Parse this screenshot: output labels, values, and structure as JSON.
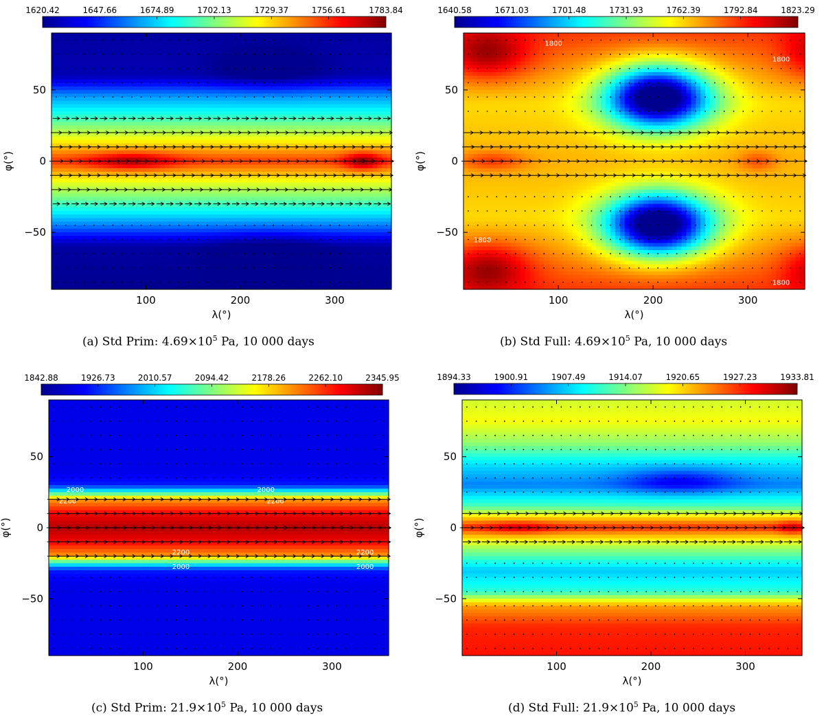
{
  "figure": {
    "colors": [
      "#00008f",
      "#0000ff",
      "#0080ff",
      "#00ffff",
      "#80ff80",
      "#ffff00",
      "#ff8000",
      "#ff0000",
      "#800000"
    ],
    "vector_color": "#000000",
    "contour_color": "#ffffff"
  },
  "chart_data": [
    {
      "type": "heatmap",
      "title": "Std Prim: 4.69×10^5 Pa, 10 000 days",
      "caption_prefix": "(a)  Std Prim:  4.69×10",
      "caption_exp": "5",
      "caption_suffix": " Pa, 10 000 days",
      "xlabel": "λ(°)",
      "ylabel": "φ(°)",
      "xlim": [
        0,
        360
      ],
      "ylim": [
        -90,
        90
      ],
      "xticks": [
        100,
        200,
        300
      ],
      "yticks": [
        -50,
        0,
        50
      ],
      "ytick_labels": [
        "−50",
        "0",
        "50"
      ],
      "colorbar_ticks": [
        "1620.42",
        "1647.66",
        "1674.89",
        "1702.13",
        "1729.37",
        "1756.61",
        "1783.84"
      ],
      "field": {
        "base": [
          [
            -90,
            0.0
          ],
          [
            -60,
            0.02
          ],
          [
            -45,
            0.25
          ],
          [
            -35,
            0.38
          ],
          [
            -25,
            0.5
          ],
          [
            -15,
            0.6
          ],
          [
            0,
            0.82
          ],
          [
            15,
            0.62
          ],
          [
            25,
            0.5
          ],
          [
            35,
            0.38
          ],
          [
            45,
            0.28
          ],
          [
            60,
            0.04
          ],
          [
            90,
            0.02
          ]
        ],
        "blobs": [
          {
            "lon": 85,
            "lat": 0,
            "sx": 45,
            "sy": 6,
            "amp": 0.15
          },
          {
            "lon": 330,
            "lat": 0,
            "sx": 20,
            "sy": 6,
            "amp": 0.18
          },
          {
            "lon": 230,
            "lat": 65,
            "sx": 55,
            "sy": 14,
            "amp": -0.08
          },
          {
            "lon": 230,
            "lat": -65,
            "sx": 55,
            "sy": 14,
            "amp": -0.08
          }
        ]
      },
      "jets": [
        {
          "lat": 20,
          "speed": 0.7
        },
        {
          "lat": 10,
          "speed": 0.85
        },
        {
          "lat": 0,
          "speed": 1.0
        },
        {
          "lat": -10,
          "speed": 0.85
        },
        {
          "lat": -20,
          "speed": 0.6
        },
        {
          "lat": 30,
          "speed": 0.3
        },
        {
          "lat": -30,
          "speed": 0.3
        }
      ],
      "contour_labels": []
    },
    {
      "type": "heatmap",
      "title": "Std Full: 4.69×10^5 Pa, 10 000 days",
      "caption_prefix": "(b)  Std Full:  4.69×10",
      "caption_exp": "5",
      "caption_suffix": " Pa, 10 000 days",
      "xlabel": "λ(°)",
      "ylabel": "φ(°)",
      "xlim": [
        0,
        360
      ],
      "ylim": [
        -90,
        90
      ],
      "xticks": [
        100,
        200,
        300
      ],
      "yticks": [
        -50,
        0,
        50
      ],
      "ytick_labels": [
        "−50",
        "0",
        "50"
      ],
      "colorbar_ticks": [
        "1640.58",
        "1671.03",
        "1701.48",
        "1731.93",
        "1762.39",
        "1792.84",
        "1823.29"
      ],
      "field": {
        "base": [
          [
            -90,
            0.82
          ],
          [
            -60,
            0.72
          ],
          [
            -40,
            0.66
          ],
          [
            0,
            0.7
          ],
          [
            40,
            0.66
          ],
          [
            60,
            0.72
          ],
          [
            90,
            0.82
          ]
        ],
        "blobs": [
          {
            "lon": 205,
            "lat": 45,
            "sx": 55,
            "sy": 22,
            "amp": -0.78
          },
          {
            "lon": 205,
            "lat": -45,
            "sx": 55,
            "sy": 22,
            "amp": -0.78
          },
          {
            "lon": 25,
            "lat": 75,
            "sx": 45,
            "sy": 18,
            "amp": 0.2
          },
          {
            "lon": 25,
            "lat": -75,
            "sx": 45,
            "sy": 18,
            "amp": 0.2
          },
          {
            "lon": 370,
            "lat": 75,
            "sx": 35,
            "sy": 18,
            "amp": 0.15
          },
          {
            "lon": 370,
            "lat": -75,
            "sx": 35,
            "sy": 18,
            "amp": 0.15
          },
          {
            "lon": 30,
            "lat": 0,
            "sx": 35,
            "sy": 7,
            "amp": 0.12
          },
          {
            "lon": 310,
            "lat": 0,
            "sx": 20,
            "sy": 7,
            "amp": 0.1
          }
        ]
      },
      "jets": [
        {
          "lat": 20,
          "speed": 0.6
        },
        {
          "lat": 10,
          "speed": 0.8
        },
        {
          "lat": 0,
          "speed": 1.0
        },
        {
          "lat": -10,
          "speed": 0.75
        }
      ],
      "contour_labels": [
        {
          "text": "1800",
          "lon": 95,
          "lat": 83
        },
        {
          "text": "1800",
          "lon": 335,
          "lat": 72
        },
        {
          "text": "1800",
          "lon": 20,
          "lat": -55
        },
        {
          "text": "1800",
          "lon": 335,
          "lat": -85
        }
      ]
    },
    {
      "type": "heatmap",
      "title": "Std Prim: 21.9×10^5 Pa, 10 000 days",
      "caption_prefix": "(c)  Std Prim:  21.9×10",
      "caption_exp": "5",
      "caption_suffix": " Pa, 10 000 days",
      "xlabel": "λ(°)",
      "ylabel": "φ(°)",
      "xlim": [
        0,
        360
      ],
      "ylim": [
        -90,
        90
      ],
      "xticks": [
        100,
        200,
        300
      ],
      "yticks": [
        -50,
        0,
        50
      ],
      "ytick_labels": [
        "−50",
        "0",
        "50"
      ],
      "colorbar_ticks": [
        "1842.88",
        "1926.73",
        "2010.57",
        "2094.42",
        "2178.26",
        "2262.10",
        "2345.95"
      ],
      "field": {
        "base": [
          [
            -90,
            0.1
          ],
          [
            -40,
            0.1
          ],
          [
            -30,
            0.15
          ],
          [
            -25,
            0.4
          ],
          [
            -20,
            0.72
          ],
          [
            -10,
            0.88
          ],
          [
            0,
            0.95
          ],
          [
            10,
            0.88
          ],
          [
            20,
            0.72
          ],
          [
            25,
            0.4
          ],
          [
            30,
            0.15
          ],
          [
            40,
            0.1
          ],
          [
            90,
            0.1
          ]
        ],
        "blobs": []
      },
      "jets": [
        {
          "lat": 20,
          "speed": 0.85
        },
        {
          "lat": 10,
          "speed": 0.9
        },
        {
          "lat": 0,
          "speed": 1.0
        },
        {
          "lat": -10,
          "speed": 0.9
        },
        {
          "lat": -20,
          "speed": 0.85
        }
      ],
      "contour_labels": [
        {
          "text": "2000",
          "lon": 28,
          "lat": 27
        },
        {
          "text": "2000",
          "lon": 230,
          "lat": 27
        },
        {
          "text": "2200",
          "lon": 20,
          "lat": 19
        },
        {
          "text": "2200",
          "lon": 240,
          "lat": 19
        },
        {
          "text": "2200",
          "lon": 140,
          "lat": -17
        },
        {
          "text": "2200",
          "lon": 335,
          "lat": -17
        },
        {
          "text": "2000",
          "lon": 140,
          "lat": -27
        },
        {
          "text": "2000",
          "lon": 335,
          "lat": -27
        }
      ]
    },
    {
      "type": "heatmap",
      "title": "Std Full: 21.9×10^5 Pa, 10 000 days",
      "caption_prefix": "(d)  Std Full:  21.9×10",
      "caption_exp": "5",
      "caption_suffix": " Pa, 10 000 days",
      "xlabel": "λ(°)",
      "ylabel": "φ(°)",
      "xlim": [
        0,
        360
      ],
      "ylim": [
        -90,
        90
      ],
      "xticks": [
        100,
        200,
        300
      ],
      "yticks": [
        -50,
        0,
        50
      ],
      "ytick_labels": [
        "−50",
        "0",
        "50"
      ],
      "colorbar_ticks": [
        "1894.33",
        "1900.91",
        "1907.49",
        "1914.07",
        "1920.65",
        "1927.23",
        "1933.81"
      ],
      "field": {
        "base": [
          [
            -90,
            0.86
          ],
          [
            -70,
            0.84
          ],
          [
            -55,
            0.72
          ],
          [
            -45,
            0.42
          ],
          [
            -30,
            0.32
          ],
          [
            -15,
            0.52
          ],
          [
            -5,
            0.7
          ],
          [
            0,
            0.84
          ],
          [
            5,
            0.72
          ],
          [
            15,
            0.45
          ],
          [
            30,
            0.25
          ],
          [
            45,
            0.35
          ],
          [
            60,
            0.52
          ],
          [
            75,
            0.62
          ],
          [
            90,
            0.58
          ]
        ],
        "blobs": [
          {
            "lon": 230,
            "lat": 33,
            "sx": 60,
            "sy": 9,
            "amp": -0.15
          },
          {
            "lon": 60,
            "lat": 0,
            "sx": 35,
            "sy": 5,
            "amp": 0.08
          },
          {
            "lon": 350,
            "lat": 0,
            "sx": 15,
            "sy": 5,
            "amp": 0.1
          }
        ]
      },
      "jets": [
        {
          "lat": 10,
          "speed": 0.6
        },
        {
          "lat": 0,
          "speed": 1.0
        },
        {
          "lat": -10,
          "speed": 0.4
        }
      ],
      "contour_labels": []
    }
  ]
}
